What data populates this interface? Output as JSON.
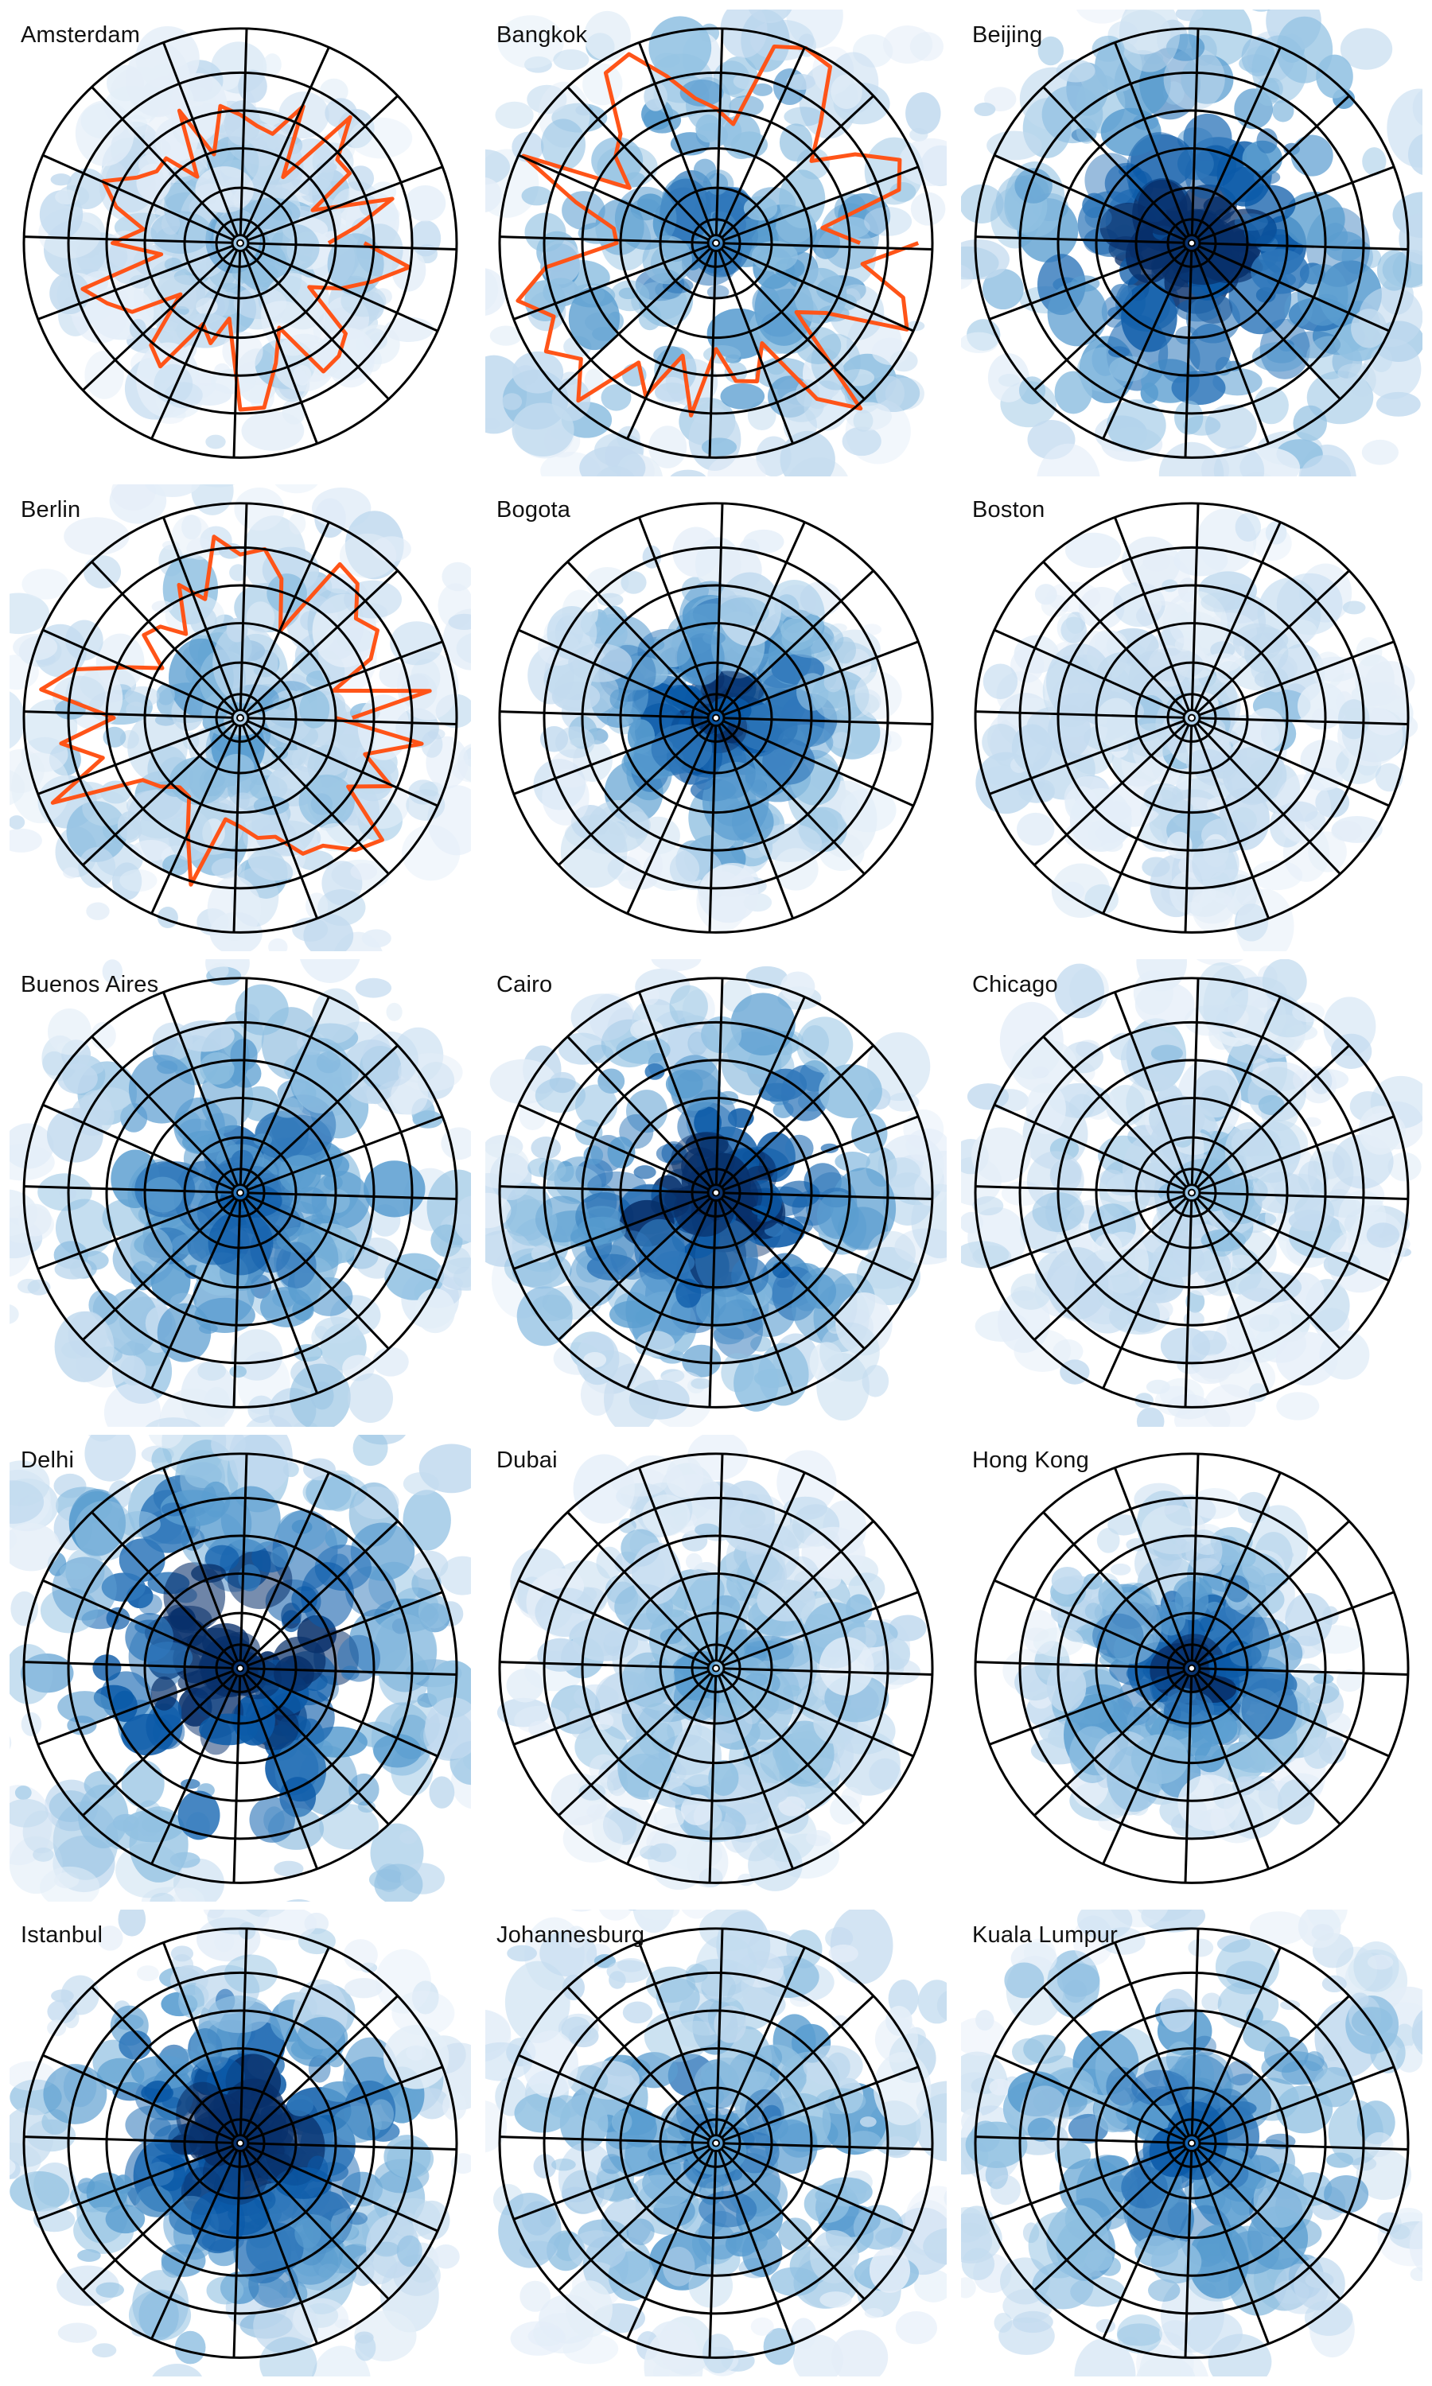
{
  "colors": {
    "density_scale": [
      "#e4eef8",
      "#c3dbef",
      "#92c1e2",
      "#5a9dd0",
      "#2f77ba",
      "#0b5aa8",
      "#08306b"
    ],
    "grid_lines": "#000000",
    "boundary": "#ff5418"
  },
  "panels": [
    {
      "label": "Amsterdam",
      "intensity": 0.22,
      "spread": 0.55,
      "has_boundary": true
    },
    {
      "label": "Bangkok",
      "intensity": 0.45,
      "spread": 0.9,
      "has_boundary": true
    },
    {
      "label": "Beijing",
      "intensity": 0.8,
      "spread": 0.85,
      "has_boundary": false
    },
    {
      "label": "Berlin",
      "intensity": 0.28,
      "spread": 0.8,
      "has_boundary": true
    },
    {
      "label": "Bogota",
      "intensity": 0.72,
      "spread": 0.5,
      "has_boundary": false
    },
    {
      "label": "Boston",
      "intensity": 0.15,
      "spread": 0.6,
      "has_boundary": false
    },
    {
      "label": "Buenos Aires",
      "intensity": 0.55,
      "spread": 0.8,
      "has_boundary": false
    },
    {
      "label": "Cairo",
      "intensity": 0.85,
      "spread": 0.7,
      "has_boundary": false
    },
    {
      "label": "Chicago",
      "intensity": 0.2,
      "spread": 0.7,
      "has_boundary": false
    },
    {
      "label": "Delhi",
      "intensity": 0.85,
      "spread": 0.9,
      "has_boundary": false
    },
    {
      "label": "Dubai",
      "intensity": 0.35,
      "spread": 0.6,
      "has_boundary": false
    },
    {
      "label": "Hong Kong",
      "intensity": 0.7,
      "spread": 0.45,
      "has_boundary": false
    },
    {
      "label": "Istanbul",
      "intensity": 0.82,
      "spread": 0.75,
      "has_boundary": false
    },
    {
      "label": "Johannesburg",
      "intensity": 0.45,
      "spread": 0.85,
      "has_boundary": false
    },
    {
      "label": "Kuala Lumpur",
      "intensity": 0.55,
      "spread": 0.85,
      "has_boundary": false
    }
  ]
}
